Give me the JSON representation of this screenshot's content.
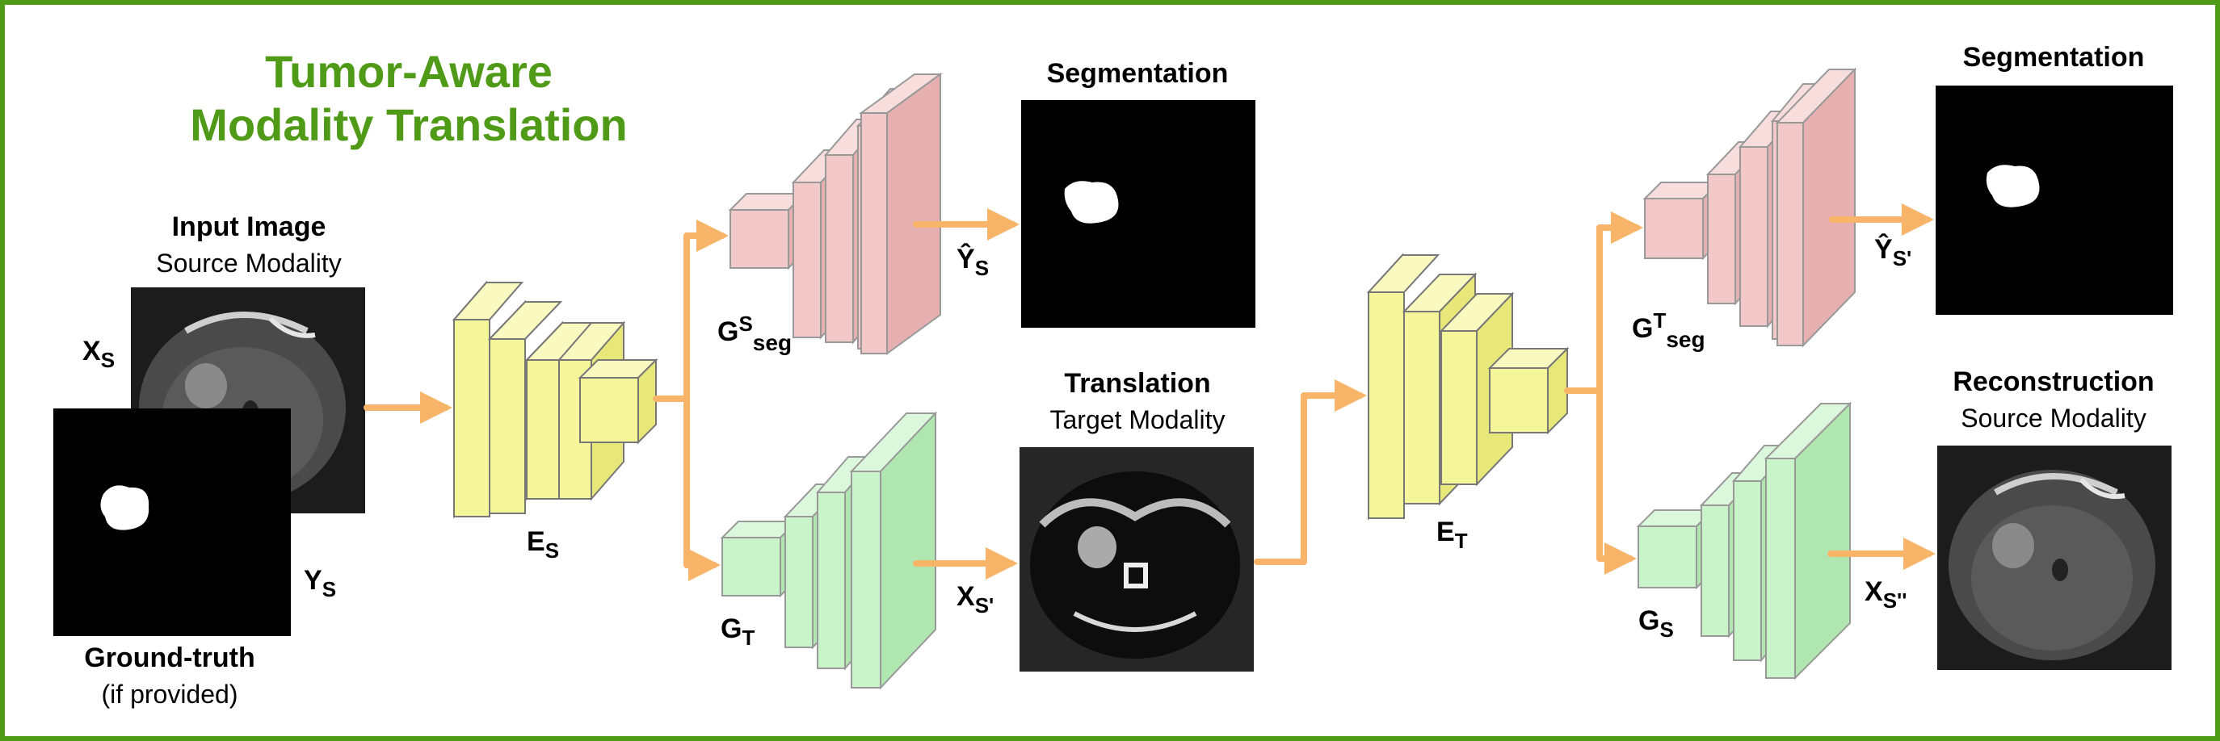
{
  "title": {
    "line1": "Tumor-Aware",
    "line2": "Modality Translation"
  },
  "input": {
    "heading": "Input Image",
    "subheading": "Source Modality",
    "image_label_main": "X",
    "image_label_sub": "S"
  },
  "ground_truth": {
    "heading": "Ground-truth",
    "subheading": "(if provided)",
    "label_main": "Y",
    "label_sub": "S"
  },
  "encoders": {
    "source": {
      "main": "E",
      "sub": "S"
    },
    "target": {
      "main": "E",
      "sub": "T"
    }
  },
  "generators": {
    "seg_source": {
      "main": "G",
      "sup": "S",
      "sub": "seg"
    },
    "translate": {
      "main": "G",
      "sub": "T"
    },
    "seg_target": {
      "main": "G",
      "sup": "T",
      "sub": "seg"
    },
    "reconstruct": {
      "main": "G",
      "sub": "S"
    }
  },
  "outputs": {
    "segmentation1": {
      "heading": "Segmentation",
      "label_main": "Ŷ",
      "label_sub": "S"
    },
    "translation": {
      "heading": "Translation",
      "subheading": "Target Modality",
      "label_main": "X",
      "label_sub": "S'"
    },
    "segmentation2": {
      "heading": "Segmentation",
      "label_main": "Ŷ",
      "label_sub": "S'"
    },
    "reconstruction": {
      "heading": "Reconstruction",
      "subheading": "Source Modality",
      "label_main": "X",
      "label_sub": "S''"
    }
  },
  "colors": {
    "frame": "#4f9a16",
    "encoder": "#f5f59a",
    "seg_generator": "#f3c8c8",
    "translate_generator": "#c9f3c9",
    "arrow": "#f8b56a",
    "title": "#4f9a16"
  }
}
